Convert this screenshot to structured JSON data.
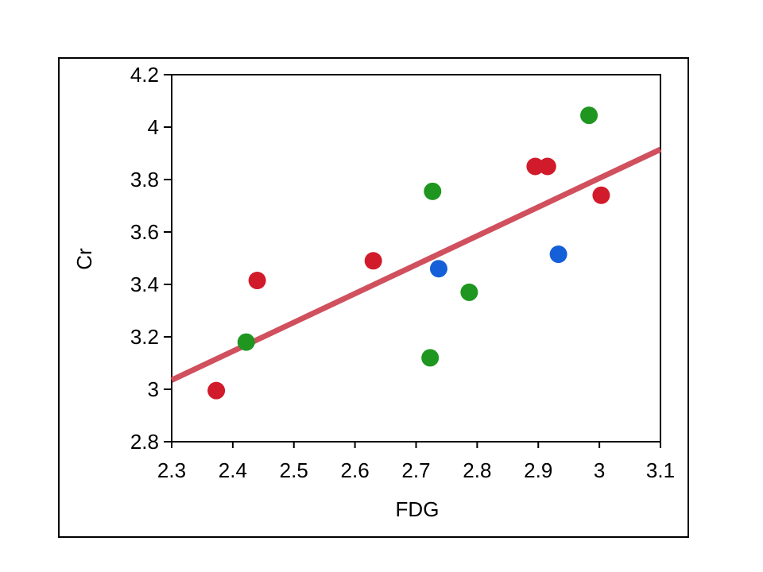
{
  "chart_data": {
    "type": "scatter",
    "title": "",
    "xlabel": "FDG",
    "ylabel": "Cr",
    "xlim": [
      2.3,
      3.1
    ],
    "ylim": [
      2.8,
      4.2
    ],
    "x_ticks": [
      "2.3",
      "2.4",
      "2.5",
      "2.6",
      "2.7",
      "2.8",
      "2.9",
      "3",
      "3.1"
    ],
    "y_ticks": [
      "2.8",
      "3",
      "3.2",
      "3.4",
      "3.6",
      "3.8",
      "4",
      "4.2"
    ],
    "grid": false,
    "legend": "none",
    "series": [
      {
        "color": "#d11a2a",
        "points": [
          {
            "x": 2.373,
            "y": 2.995
          },
          {
            "x": 2.44,
            "y": 3.415
          },
          {
            "x": 2.63,
            "y": 3.49
          },
          {
            "x": 2.895,
            "y": 3.85
          },
          {
            "x": 2.915,
            "y": 3.85
          },
          {
            "x": 3.003,
            "y": 3.74
          }
        ]
      },
      {
        "color": "#1e9620",
        "points": [
          {
            "x": 2.422,
            "y": 3.18
          },
          {
            "x": 2.723,
            "y": 3.12
          },
          {
            "x": 2.727,
            "y": 3.755
          },
          {
            "x": 2.787,
            "y": 3.37
          },
          {
            "x": 2.983,
            "y": 4.045
          }
        ]
      },
      {
        "color": "#1560d8",
        "points": [
          {
            "x": 2.737,
            "y": 3.46
          },
          {
            "x": 2.933,
            "y": 3.515
          }
        ]
      }
    ],
    "fit_line": {
      "color": "#d0505e",
      "points": [
        {
          "x": 2.3,
          "y": 3.035
        },
        {
          "x": 3.1,
          "y": 3.915
        }
      ]
    }
  }
}
